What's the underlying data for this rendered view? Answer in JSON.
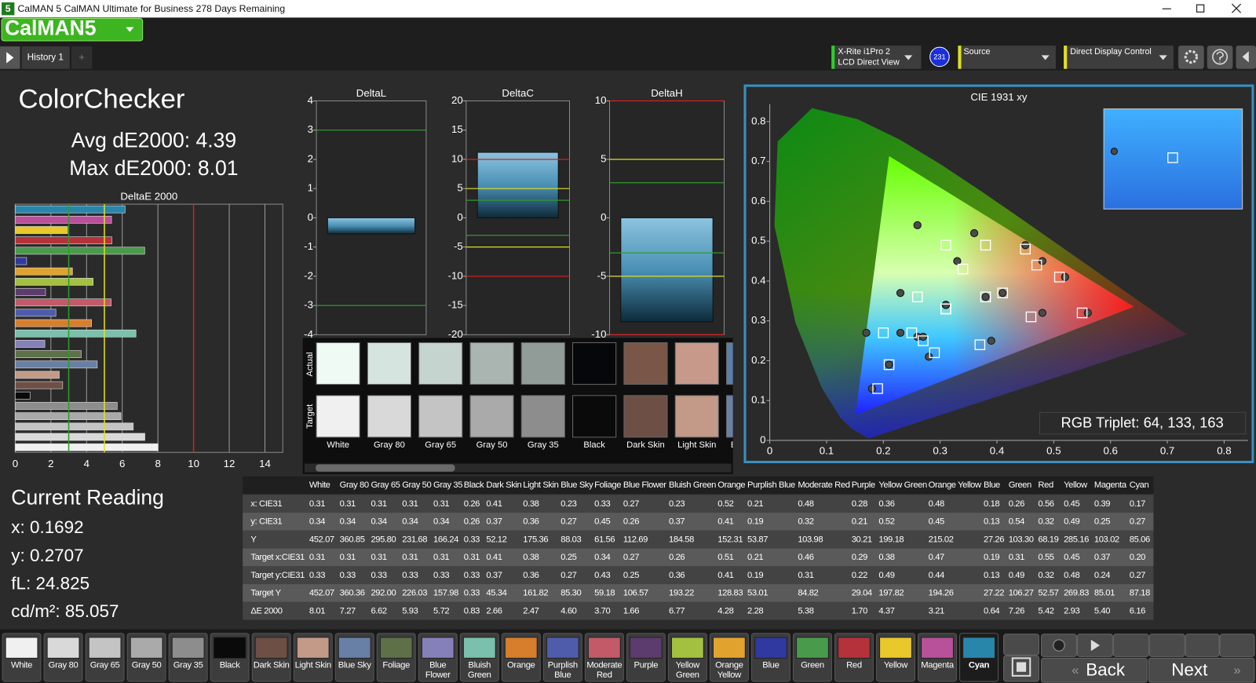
{
  "titlebar": {
    "icon": "5",
    "title": "CalMAN 5 CalMAN Ultimate for Business 278 Days Remaining"
  },
  "logo": "CalMAN5",
  "tabs": [
    "History 1"
  ],
  "toolbar": {
    "meter": [
      "X-Rite i1Pro 2",
      "LCD Direct View"
    ],
    "meter_badge": "231",
    "source": "Source",
    "display": "Direct Display Control"
  },
  "summary": {
    "title": "ColorChecker",
    "avg": "Avg dE2000: 4.39",
    "max": "Max dE2000: 8.01"
  },
  "chart_data": [
    {
      "type": "hbar",
      "title": "DeltaE 2000",
      "values": [
        8.01,
        7.27,
        6.62,
        5.93,
        5.72,
        0.83,
        2.66,
        2.47,
        4.6,
        3.7,
        1.66,
        6.77,
        4.28,
        2.28,
        5.38,
        1.7,
        4.37,
        3.21,
        0.64,
        7.26,
        5.42,
        2.93,
        5.4,
        6.16
      ],
      "xlim": [
        0,
        15
      ],
      "xticks": [
        0,
        2,
        4,
        6,
        8,
        10,
        12,
        14
      ],
      "grid": true,
      "reference_lines": [
        {
          "value": 3,
          "color": "#2f9a2f"
        },
        {
          "value": 5,
          "color": "#e0e020"
        },
        {
          "value": 10,
          "color": "#d02020"
        }
      ]
    },
    {
      "type": "bar",
      "title": "DeltaL",
      "values": [
        -0.55
      ],
      "ylim": [
        -4,
        4
      ],
      "yticks": [
        -4,
        -3,
        -2,
        -1,
        0,
        1,
        2,
        3,
        4
      ],
      "reference_lines": [
        {
          "value": 3,
          "color": "#2f9a2f"
        },
        {
          "value": -3,
          "color": "#2f9a2f"
        }
      ]
    },
    {
      "type": "bar",
      "title": "DeltaC",
      "values": [
        11.2
      ],
      "ylim": [
        -20,
        20
      ],
      "yticks": [
        -20,
        -15,
        -10,
        -5,
        0,
        5,
        10,
        15,
        20
      ],
      "reference_lines": [
        {
          "value": 10,
          "color": "#d02020"
        },
        {
          "value": -10,
          "color": "#d02020"
        },
        {
          "value": 5,
          "color": "#e0e020"
        },
        {
          "value": -5,
          "color": "#e0e020"
        },
        {
          "value": 3,
          "color": "#2f9a2f"
        },
        {
          "value": -3,
          "color": "#2f9a2f"
        }
      ]
    },
    {
      "type": "bar",
      "title": "DeltaH",
      "values": [
        -8.9
      ],
      "ylim": [
        -10,
        10
      ],
      "yticks": [
        -10,
        -5,
        0,
        5,
        10
      ],
      "reference_lines": [
        {
          "value": 10,
          "color": "#d02020"
        },
        {
          "value": -10,
          "color": "#d02020"
        },
        {
          "value": 5,
          "color": "#e0e020"
        },
        {
          "value": -5,
          "color": "#e0e020"
        },
        {
          "value": 3,
          "color": "#2f9a2f"
        },
        {
          "value": -3,
          "color": "#2f9a2f"
        }
      ]
    },
    {
      "type": "scatter",
      "title": "CIE 1931 xy",
      "annotation": "RGB Triplet: 64, 133, 163",
      "xlim": [
        0,
        0.842
      ],
      "ylim": [
        0,
        0.844
      ],
      "xticks": [
        0,
        0.1,
        0.2,
        0.3,
        0.4,
        0.5,
        0.6,
        0.7,
        0.8
      ],
      "yticks": [
        0,
        0.1,
        0.2,
        0.3,
        0.4,
        0.5,
        0.6,
        0.7,
        0.8
      ],
      "series": [
        {
          "color": "#4a4a4a",
          "marker": "circle",
          "x": [
            0.31,
            0.31,
            0.31,
            0.31,
            0.31,
            0.26,
            0.41,
            0.38,
            0.23,
            0.33,
            0.27,
            0.23,
            0.52,
            0.21,
            0.48,
            0.28,
            0.36,
            0.48,
            0.18,
            0.26,
            0.56,
            0.45,
            0.39,
            0.17
          ],
          "values": [
            0.34,
            0.34,
            0.34,
            0.34,
            0.34,
            0.26,
            0.37,
            0.36,
            0.27,
            0.45,
            0.26,
            0.37,
            0.41,
            0.19,
            0.32,
            0.21,
            0.52,
            0.45,
            0.13,
            0.54,
            0.32,
            0.49,
            0.25,
            0.27
          ]
        },
        {
          "color": "#ffffff",
          "marker": "square",
          "x": [
            0.31,
            0.31,
            0.31,
            0.31,
            0.31,
            0.31,
            0.41,
            0.38,
            0.25,
            0.34,
            0.27,
            0.26,
            0.51,
            0.21,
            0.46,
            0.29,
            0.38,
            0.47,
            0.19,
            0.31,
            0.55,
            0.45,
            0.37,
            0.2
          ],
          "values": [
            0.33,
            0.33,
            0.33,
            0.33,
            0.33,
            0.33,
            0.37,
            0.36,
            0.27,
            0.43,
            0.25,
            0.36,
            0.41,
            0.19,
            0.31,
            0.22,
            0.49,
            0.44,
            0.13,
            0.49,
            0.32,
            0.48,
            0.24,
            0.27
          ]
        }
      ]
    }
  ],
  "swatch_strip": {
    "actual": "Actual",
    "target": "Target"
  },
  "current_reading": {
    "title": "Current Reading",
    "lines": [
      "x: 0.1692",
      "y: 0.2707",
      "fL: 24.825",
      "cd/m²: 85.057"
    ]
  },
  "patches": [
    {
      "name": "White",
      "color": "#f0f0f0",
      "actual": "#eefaf3"
    },
    {
      "name": "Gray 80",
      "color": "#d9d9d9",
      "actual": "#d6e4df"
    },
    {
      "name": "Gray 65",
      "color": "#c4c4c4",
      "actual": "#c6d4cf"
    },
    {
      "name": "Gray 50",
      "color": "#aaaaaa",
      "actual": "#aab5b1"
    },
    {
      "name": "Gray 35",
      "color": "#8d8d8d",
      "actual": "#919b98"
    },
    {
      "name": "Black",
      "color": "#0a0a0a",
      "actual": "#05070a"
    },
    {
      "name": "Dark Skin",
      "color": "#6e4f45",
      "actual": "#7a5648"
    },
    {
      "name": "Light Skin",
      "color": "#c39a88",
      "actual": "#c7998a"
    },
    {
      "name": "Blue Sky",
      "color": "#6880a6",
      "actual": "#5a7fa8"
    },
    {
      "name": "Foliage",
      "color": "#5d7048"
    },
    {
      "name": "Blue Flower",
      "color": "#8581b8"
    },
    {
      "name": "Bluish Green",
      "color": "#7ac0ac"
    },
    {
      "name": "Orange",
      "color": "#d67e2c"
    },
    {
      "name": "Purplish Blue",
      "color": "#4f5cab"
    },
    {
      "name": "Moderate Red",
      "color": "#c25a68"
    },
    {
      "name": "Purple",
      "color": "#5c3b6e"
    },
    {
      "name": "Yellow Green",
      "color": "#a4c040"
    },
    {
      "name": "Orange Yellow",
      "color": "#e2a22e"
    },
    {
      "name": "Blue",
      "color": "#3039a0"
    },
    {
      "name": "Green",
      "color": "#4a9a4c"
    },
    {
      "name": "Red",
      "color": "#b5323a"
    },
    {
      "name": "Yellow",
      "color": "#e8c82a"
    },
    {
      "name": "Magenta",
      "color": "#b8509a"
    },
    {
      "name": "Cyan",
      "color": "#2886ab",
      "selected": true
    }
  ],
  "table": {
    "rows": [
      {
        "label": "x: CIE31",
        "cells": [
          "0.31",
          "0.31",
          "0.31",
          "0.31",
          "0.31",
          "0.26",
          "0.41",
          "0.38",
          "0.23",
          "0.33",
          "0.27",
          "0.23",
          "0.52",
          "0.21",
          "0.48",
          "0.28",
          "0.36",
          "0.48",
          "0.18",
          "0.26",
          "0.56",
          "0.45",
          "0.39",
          "0.17"
        ]
      },
      {
        "label": "y: CIE31",
        "cells": [
          "0.34",
          "0.34",
          "0.34",
          "0.34",
          "0.34",
          "0.26",
          "0.37",
          "0.36",
          "0.27",
          "0.45",
          "0.26",
          "0.37",
          "0.41",
          "0.19",
          "0.32",
          "0.21",
          "0.52",
          "0.45",
          "0.13",
          "0.54",
          "0.32",
          "0.49",
          "0.25",
          "0.27"
        ]
      },
      {
        "label": "Y",
        "cells": [
          "452.07",
          "360.85",
          "295.80",
          "231.68",
          "166.24",
          "0.33",
          "52.12",
          "175.36",
          "88.03",
          "61.56",
          "112.69",
          "184.58",
          "152.31",
          "53.87",
          "103.98",
          "30.21",
          "199.18",
          "215.02",
          "27.26",
          "103.30",
          "68.19",
          "285.16",
          "103.02",
          "85.06"
        ]
      },
      {
        "label": "Target x:CIE31",
        "cells": [
          "0.31",
          "0.31",
          "0.31",
          "0.31",
          "0.31",
          "0.31",
          "0.41",
          "0.38",
          "0.25",
          "0.34",
          "0.27",
          "0.26",
          "0.51",
          "0.21",
          "0.46",
          "0.29",
          "0.38",
          "0.47",
          "0.19",
          "0.31",
          "0.55",
          "0.45",
          "0.37",
          "0.20"
        ]
      },
      {
        "label": "Target y:CIE31",
        "cells": [
          "0.33",
          "0.33",
          "0.33",
          "0.33",
          "0.33",
          "0.33",
          "0.37",
          "0.36",
          "0.27",
          "0.43",
          "0.25",
          "0.36",
          "0.41",
          "0.19",
          "0.31",
          "0.22",
          "0.49",
          "0.44",
          "0.13",
          "0.49",
          "0.32",
          "0.48",
          "0.24",
          "0.27"
        ]
      },
      {
        "label": "Target Y",
        "cells": [
          "452.07",
          "360.36",
          "292.00",
          "226.03",
          "157.98",
          "0.33",
          "45.34",
          "161.82",
          "85.30",
          "59.18",
          "106.57",
          "193.22",
          "128.83",
          "53.01",
          "84.82",
          "29.04",
          "197.82",
          "194.26",
          "27.22",
          "106.27",
          "52.57",
          "269.83",
          "85.01",
          "87.18"
        ]
      },
      {
        "label": "ΔE 2000",
        "cells": [
          "8.01",
          "7.27",
          "6.62",
          "5.93",
          "5.72",
          "0.83",
          "2.66",
          "2.47",
          "4.60",
          "3.70",
          "1.66",
          "6.77",
          "4.28",
          "2.28",
          "5.38",
          "1.70",
          "4.37",
          "3.21",
          "0.64",
          "7.26",
          "5.42",
          "2.93",
          "5.40",
          "6.16"
        ]
      }
    ]
  },
  "nav": {
    "back": "Back",
    "next": "Next"
  }
}
